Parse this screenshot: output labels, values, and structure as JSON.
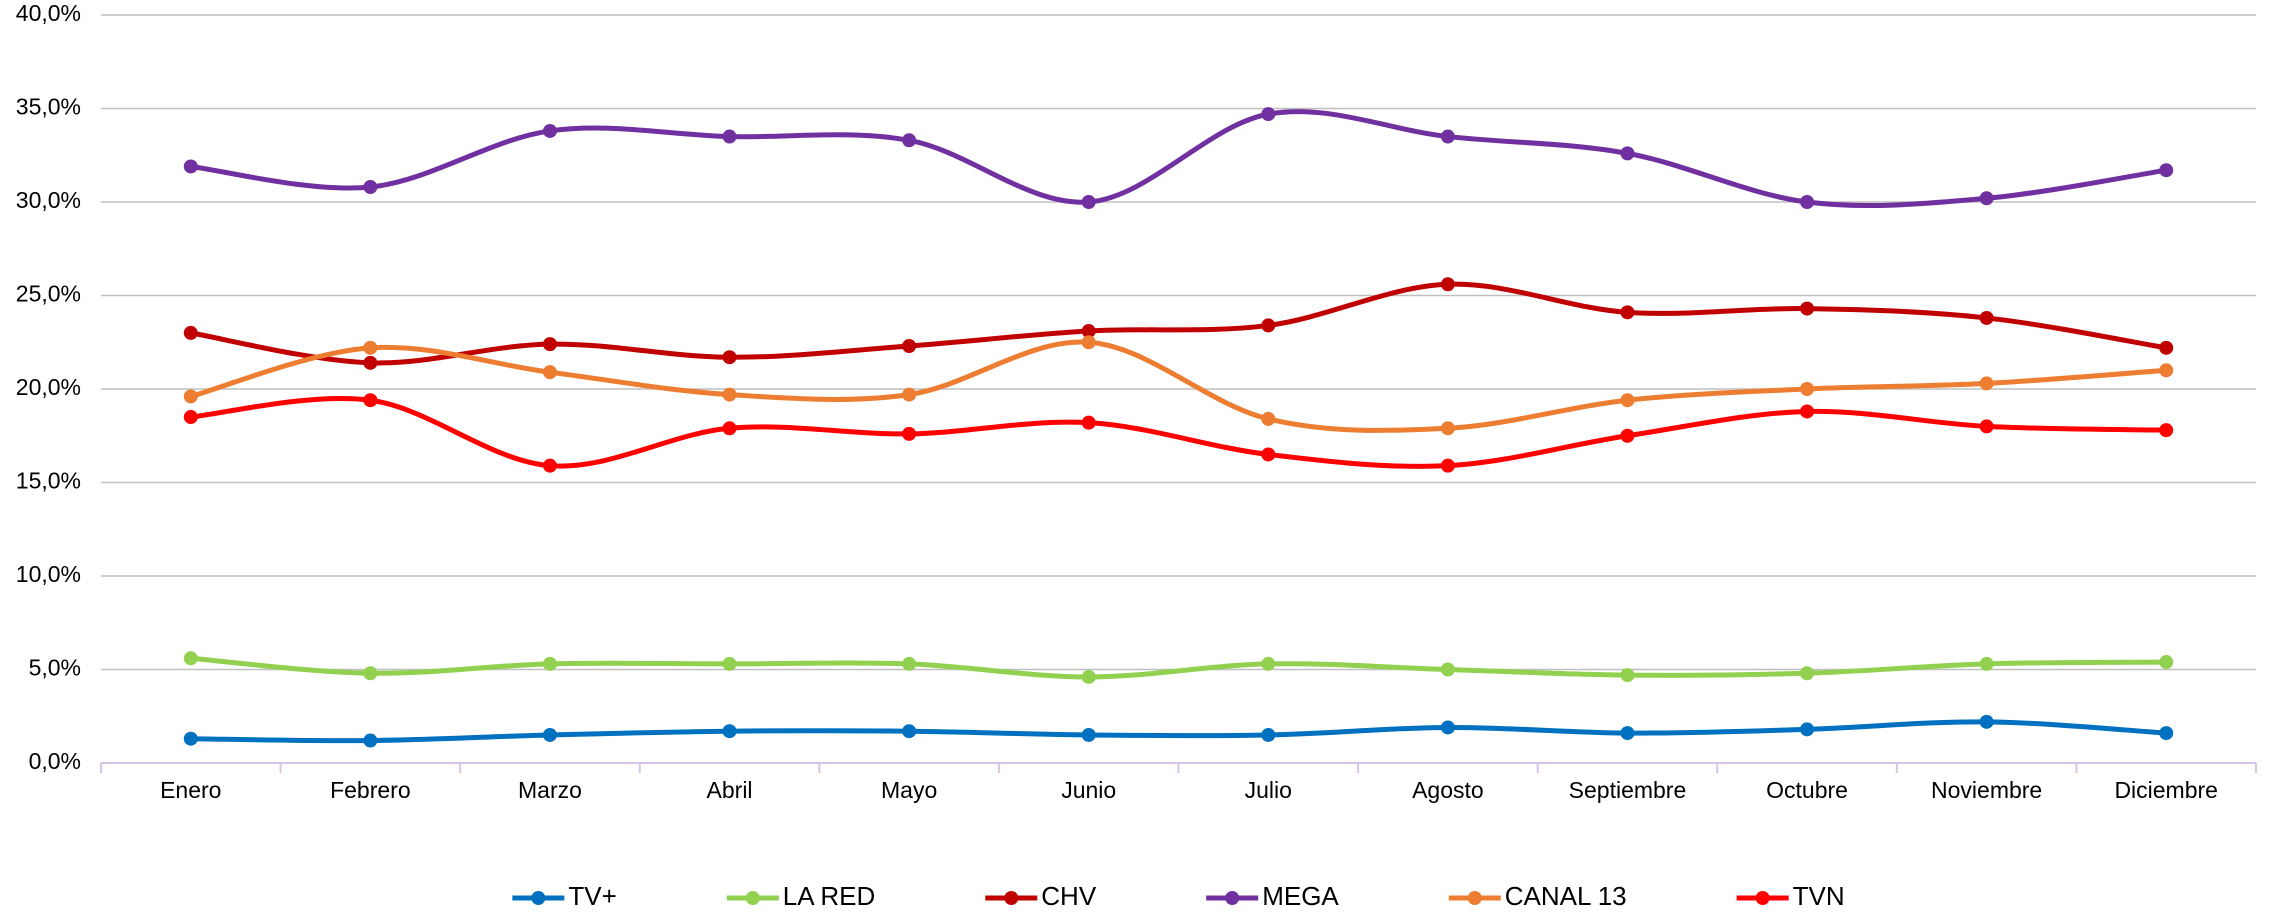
{
  "chart_data": {
    "type": "line",
    "categories": [
      "Enero",
      "Febrero",
      "Marzo",
      "Abril",
      "Mayo",
      "Junio",
      "Julio",
      "Agosto",
      "Septiembre",
      "Octubre",
      "Noviembre",
      "Diciembre"
    ],
    "ylim": [
      0,
      40
    ],
    "yticks": [
      {
        "value": 0,
        "label": "0,0%"
      },
      {
        "value": 5,
        "label": "5,0%"
      },
      {
        "value": 10,
        "label": "10,0%"
      },
      {
        "value": 15,
        "label": "15,0%"
      },
      {
        "value": 20,
        "label": "20,0%"
      },
      {
        "value": 25,
        "label": "25,0%"
      },
      {
        "value": 30,
        "label": "30,0%"
      },
      {
        "value": 35,
        "label": "35,0%"
      },
      {
        "value": 40,
        "label": "40,0%"
      }
    ],
    "grid": true,
    "smooth": true,
    "legend": "bottom",
    "series": [
      {
        "name": "TV+",
        "color": "#0070c0",
        "values": [
          1.3,
          1.2,
          1.5,
          1.7,
          1.7,
          1.5,
          1.5,
          1.9,
          1.6,
          1.8,
          2.2,
          1.6
        ]
      },
      {
        "name": "LA RED",
        "color": "#92d050",
        "values": [
          5.6,
          4.8,
          5.3,
          5.3,
          5.3,
          4.6,
          5.3,
          5.0,
          4.7,
          4.8,
          5.3,
          5.4
        ]
      },
      {
        "name": "CHV",
        "color": "#c00000",
        "values": [
          23.0,
          21.4,
          22.4,
          21.7,
          22.3,
          23.1,
          23.4,
          25.6,
          24.1,
          24.3,
          23.8,
          22.2
        ]
      },
      {
        "name": "MEGA",
        "color": "#7030a0",
        "values": [
          31.9,
          30.8,
          33.8,
          33.5,
          33.3,
          30.0,
          34.7,
          33.5,
          32.6,
          30.0,
          30.2,
          31.7
        ]
      },
      {
        "name": "CANAL 13",
        "color": "#ed7d31",
        "values": [
          19.6,
          22.2,
          20.9,
          19.7,
          19.7,
          22.5,
          18.4,
          17.9,
          19.4,
          20.0,
          20.3,
          21.0
        ]
      },
      {
        "name": "TVN",
        "color": "#ff0000",
        "values": [
          18.5,
          19.4,
          15.9,
          17.9,
          17.6,
          18.2,
          16.5,
          15.9,
          17.5,
          18.8,
          18.0,
          17.8
        ]
      }
    ]
  }
}
